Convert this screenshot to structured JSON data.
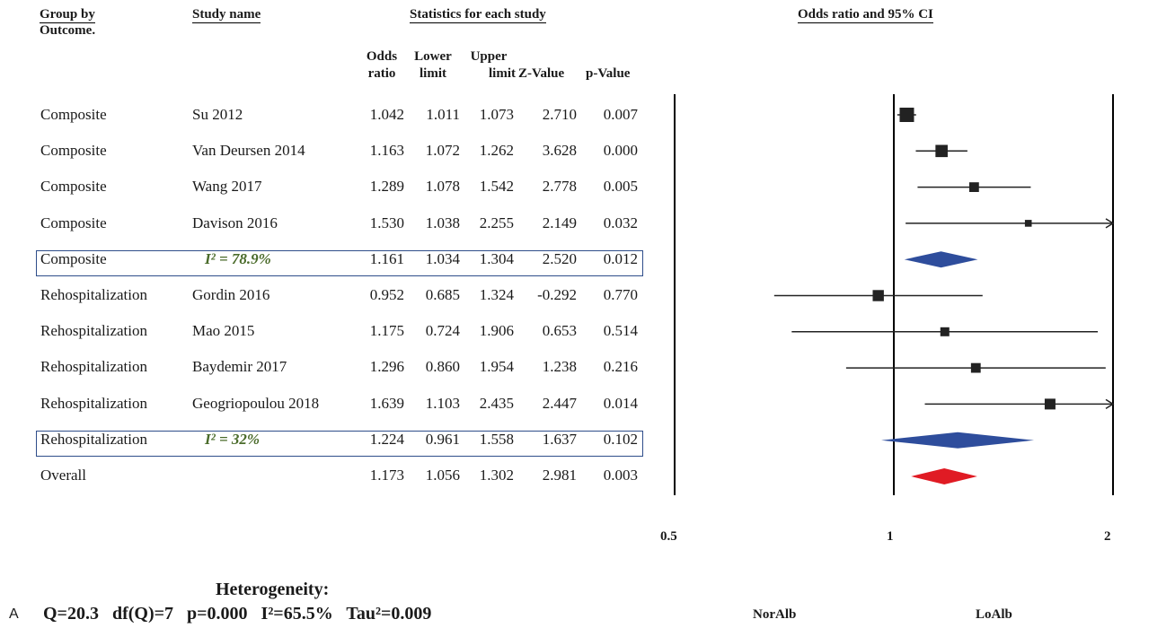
{
  "headers": {
    "group": "Group by",
    "group2": "Outcome.",
    "study": "Study name",
    "stats": "Statistics for each study",
    "plot": "Odds ratio and 95% CI",
    "col_or_1": "Odds",
    "col_or_2": "ratio",
    "col_ll_1": "Lower",
    "col_ll_2": "limit",
    "col_ul_1": "Upper",
    "col_ul_2": "limit",
    "col_z": "Z-Value",
    "col_p": "p-Value"
  },
  "rows": [
    {
      "group": "Composite",
      "study": "Su 2012",
      "or": "1.042",
      "ll": "1.011",
      "ul": "1.073",
      "z": "2.710",
      "p": "0.007"
    },
    {
      "group": "Composite",
      "study": "Van Deursen 2014",
      "or": "1.163",
      "ll": "1.072",
      "ul": "1.262",
      "z": "3.628",
      "p": "0.000"
    },
    {
      "group": "Composite",
      "study": "Wang 2017",
      "or": "1.289",
      "ll": "1.078",
      "ul": "1.542",
      "z": "2.778",
      "p": "0.005"
    },
    {
      "group": "Composite",
      "study": "Davison 2016",
      "or": "1.530",
      "ll": "1.038",
      "ul": "2.255",
      "z": "2.149",
      "p": "0.032"
    },
    {
      "group": "Composite",
      "study": "I² = 78.9%",
      "or": "1.161",
      "ll": "1.034",
      "ul": "1.304",
      "z": "2.520",
      "p": "0.012"
    },
    {
      "group": "Rehospitalization",
      "study": "Gordin 2016",
      "or": "0.952",
      "ll": "0.685",
      "ul": "1.324",
      "z": "-0.292",
      "p": "0.770"
    },
    {
      "group": "Rehospitalization",
      "study": "Mao 2015",
      "or": "1.175",
      "ll": "0.724",
      "ul": "1.906",
      "z": "0.653",
      "p": "0.514"
    },
    {
      "group": "Rehospitalization",
      "study": "Baydemir 2017",
      "or": "1.296",
      "ll": "0.860",
      "ul": "1.954",
      "z": "1.238",
      "p": "0.216"
    },
    {
      "group": "Rehospitalization",
      "study": "Geogriopoulou 2018",
      "or": "1.639",
      "ll": "1.103",
      "ul": "2.435",
      "z": "2.447",
      "p": "0.014"
    },
    {
      "group": "Rehospitalization",
      "study": "I² = 32%",
      "or": "1.224",
      "ll": "0.961",
      "ul": "1.558",
      "z": "1.637",
      "p": "0.102"
    },
    {
      "group": "Overall",
      "study": "",
      "or": "1.173",
      "ll": "1.056",
      "ul": "1.302",
      "z": "2.981",
      "p": "0.003"
    }
  ],
  "axis": {
    "tick_0": "0.5",
    "tick_1": "1",
    "tick_2": "2"
  },
  "footer": {
    "het_title": "Heterogeneity:",
    "het_label": "A",
    "het_stats": "Q=20.3   df(Q)=7   p=0.000   I²=65.5%   Tau²=0.009",
    "left_label": "NorAlb",
    "right_label": "LoAlb"
  },
  "chart_data": {
    "type": "forest",
    "x_scale": "log",
    "xlim": [
      0.5,
      2
    ],
    "x_ticks": [
      "0.5",
      "1",
      "2"
    ],
    "reference_line": 1,
    "title": "Odds ratio and 95% CI",
    "xlabel_left": "NorAlb",
    "xlabel_right": "LoAlb",
    "colors": {
      "study": "#222222",
      "subgroup": "#2e4d9c",
      "overall": "#e01b24"
    },
    "studies": [
      {
        "label": "Su 2012",
        "or": 1.042,
        "ll": 1.011,
        "ul": 1.073,
        "kind": "study",
        "weight": 3
      },
      {
        "label": "Van Deursen 2014",
        "or": 1.163,
        "ll": 1.072,
        "ul": 1.262,
        "kind": "study",
        "weight": 2.4
      },
      {
        "label": "Wang 2017",
        "or": 1.289,
        "ll": 1.078,
        "ul": 1.542,
        "kind": "study",
        "weight": 1.7
      },
      {
        "label": "Davison 2016",
        "or": 1.53,
        "ll": 1.038,
        "ul": 2.255,
        "kind": "study",
        "weight": 0.9
      },
      {
        "label": "Composite",
        "or": 1.161,
        "ll": 1.034,
        "ul": 1.304,
        "kind": "subgroup"
      },
      {
        "label": "Gordin 2016",
        "or": 0.952,
        "ll": 0.685,
        "ul": 1.324,
        "kind": "study",
        "weight": 2.1
      },
      {
        "label": "Mao 2015",
        "or": 1.175,
        "ll": 0.724,
        "ul": 1.906,
        "kind": "study",
        "weight": 1.5
      },
      {
        "label": "Baydemir 2017",
        "or": 1.296,
        "ll": 0.86,
        "ul": 1.954,
        "kind": "study",
        "weight": 1.7
      },
      {
        "label": "Geogriopoulou 2018",
        "or": 1.639,
        "ll": 1.103,
        "ul": 2.435,
        "kind": "study",
        "weight": 2.0
      },
      {
        "label": "Rehospitalization",
        "or": 1.224,
        "ll": 0.961,
        "ul": 1.558,
        "kind": "subgroup"
      },
      {
        "label": "Overall",
        "or": 1.173,
        "ll": 1.056,
        "ul": 1.302,
        "kind": "overall"
      }
    ]
  }
}
